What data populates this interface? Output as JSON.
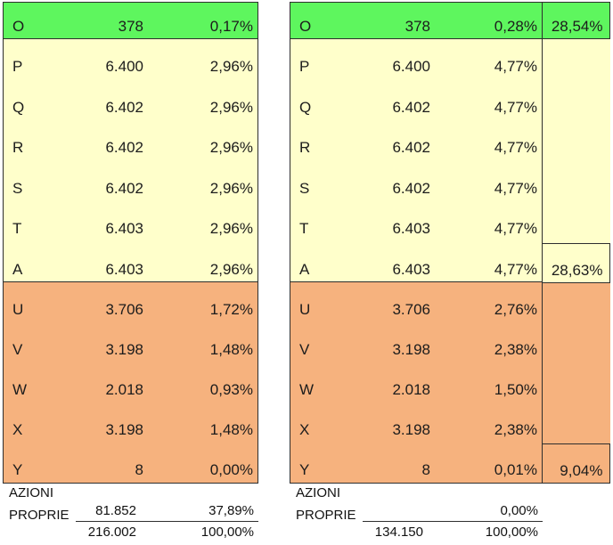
{
  "colors": {
    "green": "#5ef65e",
    "yellow": "#ffffcb",
    "orange": "#f6b27e",
    "bord": "#2e2e2e",
    "ink": "#1c1c1c"
  },
  "left": {
    "green_rows": [
      {
        "label": "O",
        "value": "378",
        "pct": "0,17%"
      }
    ],
    "yellow_rows": [
      {
        "label": "P",
        "value": "6.400",
        "pct": "2,96%"
      },
      {
        "label": "Q",
        "value": "6.402",
        "pct": "2,96%"
      },
      {
        "label": "R",
        "value": "6.402",
        "pct": "2,96%"
      },
      {
        "label": "S",
        "value": "6.402",
        "pct": "2,96%"
      },
      {
        "label": "T",
        "value": "6.403",
        "pct": "2,96%"
      },
      {
        "label": "A",
        "value": "6.403",
        "pct": "2,96%"
      }
    ],
    "orange_rows": [
      {
        "label": "U",
        "value": "3.706",
        "pct": "1,72%"
      },
      {
        "label": "V",
        "value": "3.198",
        "pct": "1,48%"
      },
      {
        "label": "W",
        "value": "2.018",
        "pct": "0,93%"
      },
      {
        "label": "X",
        "value": "3.198",
        "pct": "1,48%"
      },
      {
        "label": "Y",
        "value": "8",
        "pct": "0,00%"
      }
    ],
    "footer": {
      "line1": "AZIONI",
      "line2": "PROPRIE",
      "treasury_value": "81.852",
      "treasury_pct": "37,89%",
      "total_value": "216.002",
      "total_pct": "100,00%"
    }
  },
  "right": {
    "green_rows": [
      {
        "label": "O",
        "value": "378",
        "pct": "0,28%"
      }
    ],
    "yellow_rows": [
      {
        "label": "P",
        "value": "6.400",
        "pct": "4,77%"
      },
      {
        "label": "Q",
        "value": "6.402",
        "pct": "4,77%"
      },
      {
        "label": "R",
        "value": "6.402",
        "pct": "4,77%"
      },
      {
        "label": "S",
        "value": "6.402",
        "pct": "4,77%"
      },
      {
        "label": "T",
        "value": "6.403",
        "pct": "4,77%"
      },
      {
        "label": "A",
        "value": "6.403",
        "pct": "4,77%"
      }
    ],
    "orange_rows": [
      {
        "label": "U",
        "value": "3.706",
        "pct": "2,76%"
      },
      {
        "label": "V",
        "value": "3.198",
        "pct": "2,38%"
      },
      {
        "label": "W",
        "value": "2.018",
        "pct": "1,50%"
      },
      {
        "label": "X",
        "value": "3.198",
        "pct": "2,38%"
      },
      {
        "label": "Y",
        "value": "8",
        "pct": "0,01%"
      }
    ],
    "summary": {
      "green_pct": "28,54%",
      "yellow_pct": "28,63%",
      "orange_pct": "9,04%"
    },
    "footer": {
      "line1": "AZIONI",
      "line2": "PROPRIE",
      "treasury_value": "",
      "treasury_pct": "0,00%",
      "total_value": "134.150",
      "total_pct": "100,00%"
    }
  }
}
